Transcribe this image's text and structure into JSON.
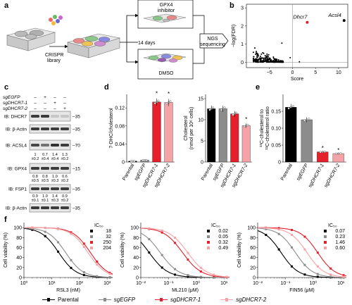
{
  "panels": {
    "a": "a",
    "b": "b",
    "c": "c",
    "d": "d",
    "e": "e",
    "f": "f"
  },
  "panel_a": {
    "crispr_library": "CRISPR",
    "crispr_library2": "library",
    "branch_top": "GPX4",
    "branch_top2": "inhibitor",
    "middle": "14 days",
    "branch_bottom": "DMSO",
    "ngs": "NGS",
    "ngs2": "sequencing"
  },
  "panel_c": {
    "rows": [
      {
        "label": "sgEGFP",
        "marks": [
          "",
          "+",
          "",
          ""
        ]
      },
      {
        "label": "sgDHCR7-1",
        "marks": [
          "",
          "",
          "+",
          ""
        ]
      },
      {
        "label": "sgDHCR7-2",
        "marks": [
          "",
          "",
          "",
          "+"
        ]
      }
    ],
    "columns_leading": [
      "–",
      "",
      "–",
      "–"
    ],
    "blots": [
      {
        "label": "IB: DHCR7",
        "kda": "35"
      },
      {
        "label": "IB: β-Actin",
        "kda": "35"
      },
      {
        "label": "IB: ACSL4",
        "kda": "70"
      },
      {
        "label": "IB: GPX4",
        "kda": "15"
      },
      {
        "label": "IB: FSP1",
        "kda": "35"
      },
      {
        "label": "IB: β-Actin",
        "kda": "35"
      }
    ],
    "quant_acsl4": [
      "1",
      "0.7",
      "1.4",
      "1.3"
    ],
    "quant_acsl4_sd": [
      "±0.2",
      "±0.4",
      "±0.4",
      "±0.2"
    ],
    "quant_gpx4": [
      "0.8",
      "0.8",
      "1.0",
      "0.6"
    ],
    "quant_gpx4_sd": [
      "±0.5",
      "±0.5",
      "±0.3",
      "±0.2"
    ],
    "quant_fsp1": [
      "0.9",
      "1.0",
      "1.4",
      "0.9"
    ],
    "quant_fsp1_sd": [
      "±0.1",
      "±0.1",
      "±0.3",
      "±0.2"
    ]
  },
  "chart_data": [
    {
      "id": "b",
      "type": "scatter",
      "xlabel": "Score",
      "ylabel": "−log(FDR)",
      "xticks": [
        "−5",
        "0",
        "5",
        "10"
      ],
      "yticks": [
        "0",
        "1",
        "2",
        "3"
      ],
      "xlim": [
        -10,
        12
      ],
      "ylim": [
        -0.3,
        3.2
      ],
      "highlights": [
        {
          "name": "Dhcr7",
          "x": 3.2,
          "y": 2.2,
          "color": "#d2232a"
        },
        {
          "name": "Acsl4",
          "x": 11.2,
          "y": 2.3,
          "color": "#000000"
        }
      ]
    },
    {
      "id": "d1",
      "type": "bar",
      "ylabel": "7-DHC/cholesterol",
      "ylim": [
        0,
        0.15
      ],
      "yticks": [
        "0",
        "0.04",
        "0.08",
        "0.12"
      ],
      "categories": [
        "Parental",
        "sgEGFP",
        "sgDHCR7-1",
        "sgDHCR7-2"
      ],
      "values": [
        0.002,
        0.004,
        0.133,
        0.132
      ],
      "colors": [
        "#000000",
        "#8c8c8c",
        "#e3202b",
        "#f4a3a6"
      ],
      "sig": [
        "",
        "",
        "*",
        "*"
      ]
    },
    {
      "id": "d2",
      "type": "bar",
      "ylabel": "Cholesterol",
      "ylabel2": "(nmol per 10⁶ cells)",
      "ylim": [
        0,
        16
      ],
      "yticks": [
        "0",
        "5",
        "10",
        "15"
      ],
      "categories": [
        "Parental",
        "sgEGFP",
        "sgDHCR7-1",
        "sgDHCR7-2"
      ],
      "values": [
        12.6,
        12.6,
        11.4,
        8.6
      ],
      "colors": [
        "#000000",
        "#8c8c8c",
        "#e3202b",
        "#f4a3a6"
      ],
      "sig": [
        "",
        "",
        "",
        "*"
      ]
    },
    {
      "id": "e",
      "type": "bar",
      "ylabel": "¹³C-cholesterol to",
      "ylabel2": "¹²C-cholesterol ratio",
      "ylim": [
        0,
        0.2
      ],
      "yticks": [
        "0",
        "0.05",
        "0.10",
        "0.15"
      ],
      "categories": [
        "Parental",
        "sgEGFP",
        "sgDHCR7-1",
        "sgDHCR7-2"
      ],
      "values": [
        0.162,
        0.125,
        0.03,
        0.025
      ],
      "colors": [
        "#000000",
        "#8c8c8c",
        "#e3202b",
        "#f4a3a6"
      ],
      "sig": [
        "",
        "",
        "*",
        "*"
      ]
    },
    {
      "id": "f1",
      "type": "line",
      "xlabel": "RSL3 (nM)",
      "ylabel": "Cell viability (%)",
      "scale": "log",
      "xticks": [
        "10⁰",
        "10¹",
        "10²",
        "10³"
      ],
      "xlim_log": [
        0,
        3.2
      ],
      "yticks": [
        "0",
        "20",
        "40",
        "60",
        "80",
        "100"
      ],
      "ic50_title": "IC₅₀",
      "ic50": [
        "18",
        "32",
        "250",
        "204"
      ]
    },
    {
      "id": "f2",
      "type": "line",
      "xlabel": "ML210 (μM)",
      "ylabel": "Cell viability (%)",
      "scale": "log",
      "xticks": [
        "10⁻²",
        "10⁻¹",
        "10⁰",
        "10¹"
      ],
      "xlim_log": [
        -2,
        1.2
      ],
      "yticks": [
        "0",
        "20",
        "40",
        "60",
        "80",
        "100"
      ],
      "ic50_title": "IC₅₀",
      "ic50": [
        "0.02",
        "0.05",
        "0.32",
        "0.49"
      ]
    },
    {
      "id": "f3",
      "type": "line",
      "xlabel": "FIN56 (μM)",
      "ylabel": "Cell viability (%)",
      "scale": "log",
      "xticks": [
        "10⁻²",
        "10⁻¹",
        "10⁰",
        "10¹"
      ],
      "xlim_log": [
        -2,
        1.2
      ],
      "yticks": [
        "0",
        "20",
        "40",
        "60",
        "80",
        "100"
      ],
      "ic50_title": "IC₅₀",
      "ic50": [
        "0.07",
        "0.23",
        "1.46",
        "0.60"
      ]
    }
  ],
  "legend": [
    {
      "name": "Parental",
      "color": "#000000",
      "italic": false
    },
    {
      "name": "sgEGFP",
      "color": "#8c8c8c",
      "italic": true
    },
    {
      "name": "sgDHCR7-1",
      "color": "#e3202b",
      "italic": true
    },
    {
      "name": "sgDHCR7-2",
      "color": "#f4a3a6",
      "italic": true
    }
  ]
}
